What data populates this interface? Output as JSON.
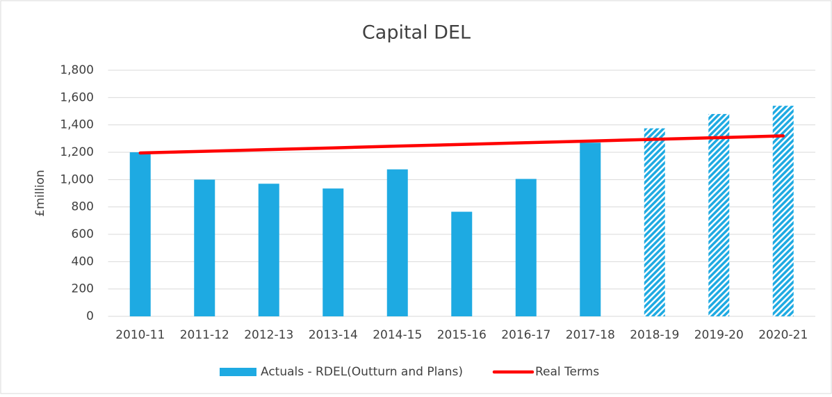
{
  "chart_data": {
    "type": "bar_line",
    "title": "Capital DEL",
    "y_label": "£million",
    "categories": [
      "2010-11",
      "2011-12",
      "2012-13",
      "2013-14",
      "2014-15",
      "2015-16",
      "2016-17",
      "2017-18",
      "2018-19",
      "2019-20",
      "2020-21"
    ],
    "series": [
      {
        "name": "Actuals - RDEL(Outturn and Plans)",
        "type": "bar",
        "color": "#1eaae2",
        "values": [
          1200,
          1000,
          970,
          935,
          1075,
          765,
          1005,
          1270,
          1375,
          1480,
          1540
        ],
        "hatched": [
          false,
          false,
          false,
          false,
          false,
          false,
          false,
          false,
          true,
          true,
          true
        ]
      },
      {
        "name": "Real Terms",
        "type": "line",
        "color": "#ff0000",
        "values": [
          1195,
          1207,
          1220,
          1232,
          1245,
          1257,
          1270,
          1282,
          1295,
          1307,
          1320
        ]
      }
    ],
    "ylim": [
      0,
      1800
    ],
    "yticks": [
      0,
      200,
      400,
      600,
      800,
      {
        "value": 1000,
        "label": "1,000"
      },
      {
        "value": 1200,
        "label": "1,200"
      },
      {
        "value": 1400,
        "label": "1,400"
      },
      {
        "value": 1600,
        "label": "1,600"
      },
      {
        "value": 1800,
        "label": "1,800"
      }
    ],
    "grid": true,
    "legend": "bottom"
  }
}
